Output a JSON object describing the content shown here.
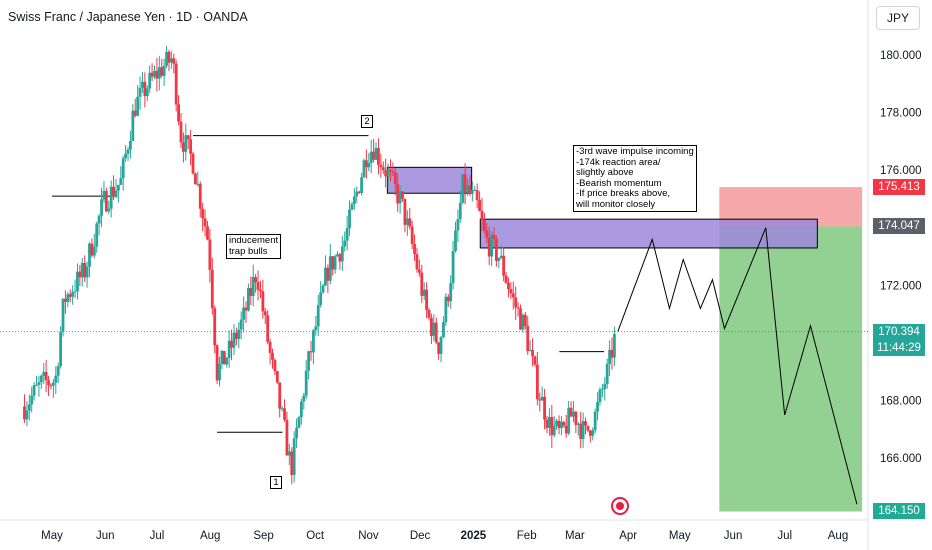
{
  "header": {
    "title": "Swiss Franc / Japanese Yen · 1D · OANDA",
    "unit": "JPY"
  },
  "chart_data": {
    "type": "candlestick",
    "title": "Swiss Franc / Japanese Yen · 1D · OANDA",
    "ylim": [
      164.0,
      181.5
    ],
    "y_ticks": [
      180.0,
      178.0,
      176.0,
      174.0,
      172.0,
      170.0,
      168.0,
      166.0
    ],
    "y_tick_labels": [
      "180.000",
      "178.000",
      "176.000",
      "174.000",
      "172.000",
      "170.000",
      "168.000",
      "166.000"
    ],
    "x_ticks": [
      "May",
      "Jun",
      "Jul",
      "Aug",
      "Sep",
      "Oct",
      "Nov",
      "Dec",
      "2025",
      "Feb",
      "Mar",
      "Apr",
      "May",
      "Jun",
      "Jul",
      "Aug"
    ],
    "price_path": [
      [
        "2024-04-15",
        167.8
      ],
      [
        "2024-04-25",
        168.6
      ],
      [
        "2024-05-03",
        168.7
      ],
      [
        "2024-05-08",
        171.5
      ],
      [
        "2024-05-20",
        172.5
      ],
      [
        "2024-05-31",
        174.9
      ],
      [
        "2024-06-10",
        175.6
      ],
      [
        "2024-06-18",
        178.2
      ],
      [
        "2024-06-25",
        178.9
      ],
      [
        "2024-07-03",
        179.5
      ],
      [
        "2024-07-10",
        179.9
      ],
      [
        "2024-07-15",
        177.2
      ],
      [
        "2024-07-22",
        176.3
      ],
      [
        "2024-07-31",
        173.5
      ],
      [
        "2024-08-05",
        169.0
      ],
      [
        "2024-08-12",
        169.7
      ],
      [
        "2024-08-20",
        170.8
      ],
      [
        "2024-08-28",
        172.5
      ],
      [
        "2024-09-05",
        169.5
      ],
      [
        "2024-09-13",
        167.0
      ],
      [
        "2024-09-17",
        165.6
      ],
      [
        "2024-09-26",
        169.0
      ],
      [
        "2024-10-08",
        172.5
      ],
      [
        "2024-10-18",
        173.5
      ],
      [
        "2024-10-31",
        176.6
      ],
      [
        "2024-11-04",
        176.8
      ],
      [
        "2024-11-12",
        175.9
      ],
      [
        "2024-11-20",
        174.9
      ],
      [
        "2024-11-28",
        173.0
      ],
      [
        "2024-12-05",
        171.0
      ],
      [
        "2024-12-12",
        169.9
      ],
      [
        "2024-12-18",
        172.0
      ],
      [
        "2024-12-26",
        175.5
      ],
      [
        "2025-01-03",
        174.8
      ],
      [
        "2025-01-08",
        173.6
      ],
      [
        "2025-01-16",
        173.0
      ],
      [
        "2025-01-24",
        171.5
      ],
      [
        "2025-01-31",
        170.5
      ],
      [
        "2025-02-07",
        168.5
      ],
      [
        "2025-02-14",
        167.2
      ],
      [
        "2025-02-21",
        166.8
      ],
      [
        "2025-02-28",
        167.6
      ],
      [
        "2025-03-07",
        166.8
      ],
      [
        "2025-03-13",
        167.5
      ],
      [
        "2025-03-20",
        169.0
      ],
      [
        "2025-03-25",
        170.4
      ]
    ],
    "structure_lines": [
      {
        "from": [
          "2024-05-01",
          175.1
        ],
        "to": [
          "2024-06-05",
          175.1
        ]
      },
      {
        "from": [
          "2024-07-22",
          177.2
        ],
        "to": [
          "2024-11-01",
          177.2
        ]
      },
      {
        "from": [
          "2024-08-05",
          166.9
        ],
        "to": [
          "2024-09-12",
          166.9
        ]
      },
      {
        "from": [
          "2025-02-20",
          169.7
        ],
        "to": [
          "2025-03-18",
          169.7
        ]
      }
    ],
    "zones": [
      {
        "from": "2024-11-12",
        "to": "2024-12-31",
        "top": 176.1,
        "bottom": 175.2,
        "color": "#9c88d9"
      },
      {
        "from": "2025-01-05",
        "to": "2025-07-20",
        "top": 174.3,
        "bottom": 173.3,
        "color": "#9c88d9"
      }
    ],
    "position": {
      "entry": 174.047,
      "stop": 175.413,
      "target": 164.15,
      "from": "2025-05-24",
      "to": "2025-08-15",
      "stop_color": "#f7a3a3",
      "target_color": "#8ccf8c"
    },
    "projection": [
      [
        "2025-03-26",
        170.4
      ],
      [
        "2025-04-15",
        173.6
      ],
      [
        "2025-04-25",
        171.2
      ],
      [
        "2025-05-03",
        172.9
      ],
      [
        "2025-05-13",
        171.2
      ],
      [
        "2025-05-20",
        172.2
      ],
      [
        "2025-05-27",
        170.5
      ],
      [
        "2025-06-20",
        174.0
      ],
      [
        "2025-07-01",
        167.5
      ],
      [
        "2025-07-16",
        170.6
      ],
      [
        "2025-08-12",
        164.4
      ]
    ],
    "current_price": 170.394,
    "current_price_color": "#26a69a",
    "countdown": "11:44:29",
    "price_labels": [
      {
        "value": 175.413,
        "text": "175.413",
        "color": "#f23645"
      },
      {
        "value": 174.047,
        "text": "174.047",
        "color": "#5d606b"
      },
      {
        "value": 164.15,
        "text": "164.150",
        "color": "#22ab94"
      }
    ],
    "annotations": {
      "note": "-3rd wave impulse incoming\n-174k reaction area/\nslightly above\n-Bearish momentum\n-If price breaks above,\nwill monitor closely",
      "trap": "inducement\ntrap bulls",
      "wave1": "1",
      "wave2": "2"
    },
    "up_color": "#26a69a",
    "down_color": "#f23645",
    "grid": false
  }
}
